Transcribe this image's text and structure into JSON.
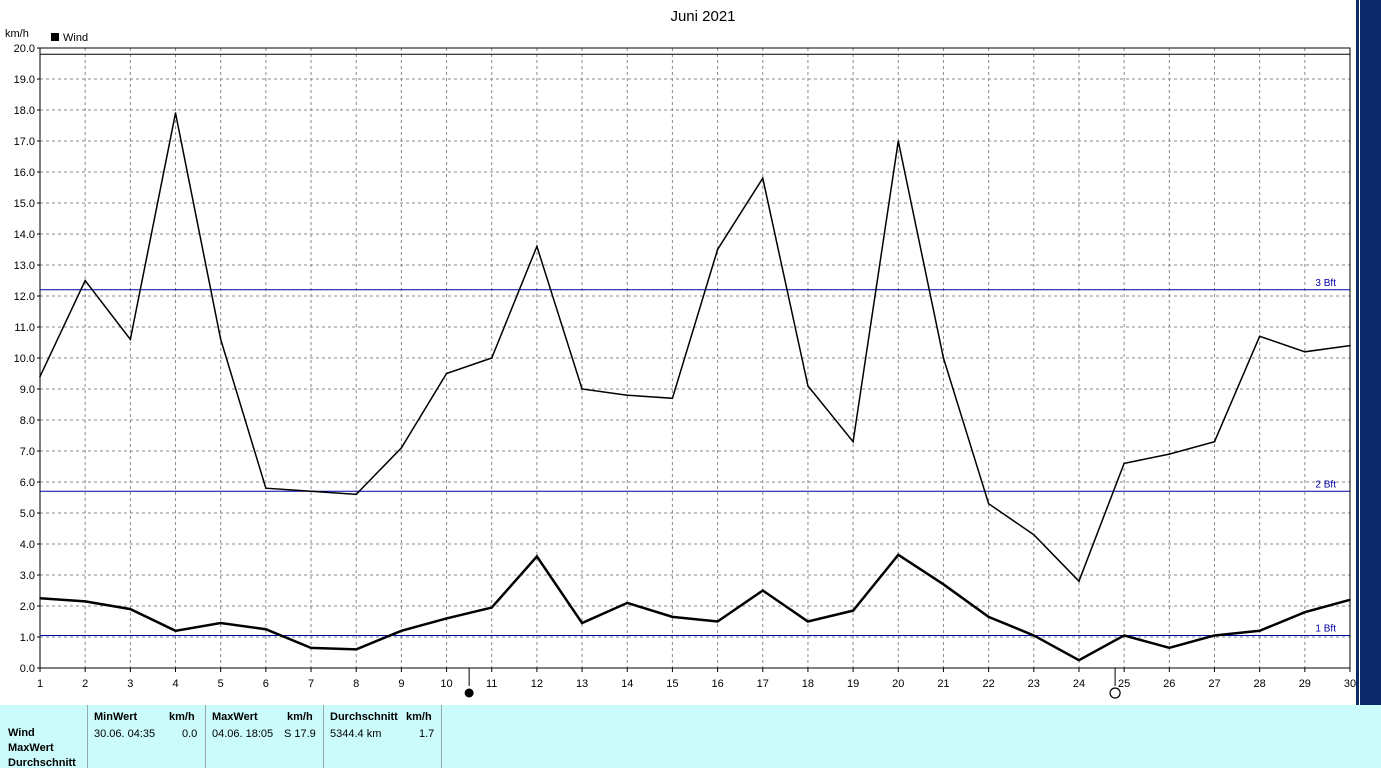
{
  "chart_data": {
    "type": "line",
    "title": "Juni 2021",
    "ylabel": "km/h",
    "legend": [
      {
        "name": "Wind",
        "color": "#000000"
      }
    ],
    "legend_placement": "top-left",
    "grid": true,
    "ylim": [
      0,
      20
    ],
    "yticks": [
      "0.0",
      "1.0",
      "2.0",
      "3.0",
      "4.0",
      "5.0",
      "6.0",
      "7.0",
      "8.0",
      "9.0",
      "10.0",
      "11.0",
      "12.0",
      "13.0",
      "14.0",
      "15.0",
      "16.0",
      "17.0",
      "18.0",
      "19.0",
      "20.0"
    ],
    "x": [
      1,
      2,
      3,
      4,
      5,
      6,
      7,
      8,
      9,
      10,
      11,
      12,
      13,
      14,
      15,
      16,
      17,
      18,
      19,
      20,
      21,
      22,
      23,
      24,
      25,
      26,
      27,
      28,
      29,
      30
    ],
    "series": [
      {
        "values": [
          9.4,
          12.5,
          10.6,
          17.9,
          10.6,
          5.8,
          5.7,
          5.6,
          7.1,
          9.5,
          10.0,
          13.6,
          9.0,
          8.8,
          8.7,
          13.5,
          15.8,
          9.1,
          7.3,
          17.0,
          10.0,
          5.3,
          4.3,
          2.8,
          6.6,
          6.9,
          7.3,
          10.7,
          10.2,
          10.4
        ],
        "color": "#000000",
        "width": 1.5
      },
      {
        "values": [
          2.25,
          2.15,
          1.9,
          1.2,
          1.45,
          1.25,
          0.65,
          0.6,
          1.2,
          1.6,
          1.95,
          3.6,
          1.45,
          2.1,
          1.65,
          1.5,
          2.5,
          1.5,
          1.85,
          3.65,
          2.7,
          1.65,
          1.05,
          0.25,
          1.05,
          0.65,
          1.05,
          1.2,
          1.8,
          2.2
        ],
        "color": "#000000",
        "width": 2.5
      }
    ],
    "reference_lines": [
      {
        "label": "1 Bft",
        "y": 1.05,
        "color": "#0000aa"
      },
      {
        "label": "2 Bft",
        "y": 5.7,
        "color": "#0000aa"
      },
      {
        "label": "3 Bft",
        "y": 12.2,
        "color": "#0000aa"
      },
      {
        "label": "",
        "y": 19.8,
        "color": "#000000"
      }
    ],
    "moon_markers": [
      {
        "type": "new-moon",
        "x": 10.5
      },
      {
        "type": "full-moon",
        "x": 24.8
      }
    ]
  },
  "stats": {
    "rows": [
      "Wind",
      "MaxWert",
      "Durchschnitt"
    ],
    "min": {
      "header": "MinWert",
      "unit": "km/h",
      "date": "30.06.  04:35",
      "value": "0.0"
    },
    "max": {
      "header": "MaxWert",
      "unit": "km/h",
      "date": "04.06.  18:05",
      "value": "S 17.9"
    },
    "avg": {
      "header": "Durchschnitt",
      "unit": "km/h",
      "distance": "5344.4 km",
      "value": "1.7"
    }
  }
}
